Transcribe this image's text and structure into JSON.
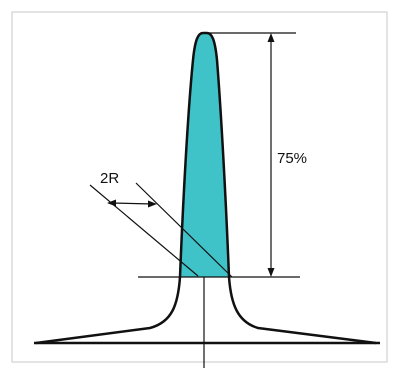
{
  "labels": {
    "width_label": "2R",
    "height_label": "75%"
  },
  "colors": {
    "profile_fill": "#3fc3c9",
    "line": "#111111",
    "frame": "#c8c8c8"
  }
}
